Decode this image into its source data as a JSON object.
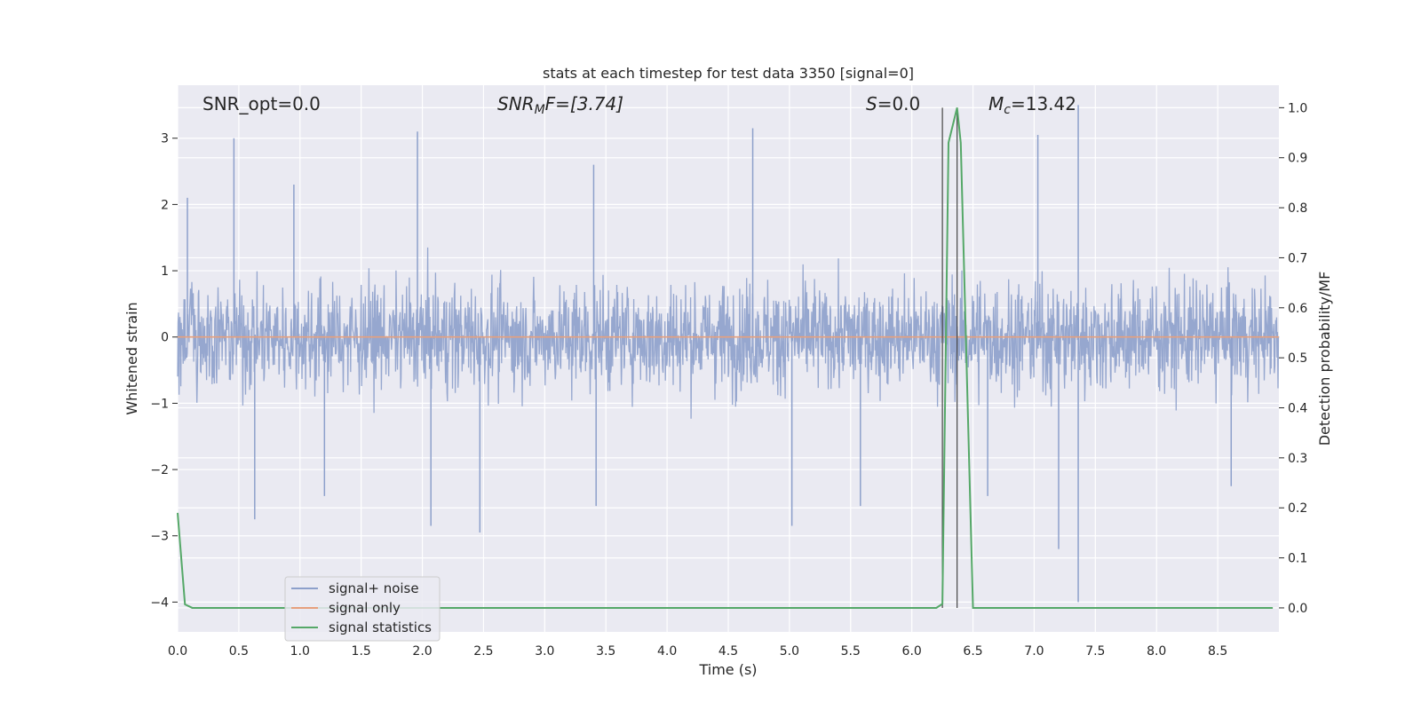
{
  "chart_data": {
    "type": "line",
    "title": "stats at each timestep for test data 3350 [signal=0]",
    "xlabel": "Time (s)",
    "ylabel": "Whitened strain",
    "y2label": "Detection probability/MF",
    "xlim": [
      0.0,
      9.0
    ],
    "ylim": [
      -4.45,
      3.8
    ],
    "y2lim": [
      -0.048,
      1.045
    ],
    "xticks": [
      "0.0",
      "0.5",
      "1.0",
      "1.5",
      "2.0",
      "2.5",
      "3.0",
      "3.5",
      "4.0",
      "4.5",
      "5.0",
      "5.5",
      "6.0",
      "6.5",
      "7.0",
      "7.5",
      "8.0",
      "8.5"
    ],
    "yticks": [
      "3",
      "2",
      "1",
      "0",
      "−1",
      "−2",
      "−3",
      "−4"
    ],
    "y2ticks": [
      "1.0",
      "0.9",
      "0.8",
      "0.7",
      "0.6",
      "0.5",
      "0.4",
      "0.3",
      "0.2",
      "0.1",
      "0.0"
    ],
    "grid": true,
    "legend_position": "lower-left",
    "annotations": {
      "snr_opt": "SNR_opt=0.0",
      "snr_mf_main": "SNR",
      "snr_mf_sub": "M",
      "snr_mf_rest": "F=[3.74]",
      "s_main": "S",
      "s_rest": "=0.0",
      "mc_main": "M",
      "mc_sub": "c",
      "mc_rest": "=13.42"
    },
    "vlines": [
      6.25,
      6.37
    ],
    "series": [
      {
        "name": "signal+ noise",
        "axis": "left",
        "color": "#8da0cb",
        "envelope_hint": {
          "typical_range": [
            -1.6,
            1.6
          ],
          "max": 3.5,
          "min": -4.0
        },
        "peaks": [
          {
            "x": 0.08,
            "y": 2.1
          },
          {
            "x": 0.46,
            "y": 3.0
          },
          {
            "x": 0.63,
            "y": -2.75
          },
          {
            "x": 0.95,
            "y": 2.3
          },
          {
            "x": 1.2,
            "y": -2.4
          },
          {
            "x": 1.96,
            "y": 3.1
          },
          {
            "x": 2.07,
            "y": -2.85
          },
          {
            "x": 2.47,
            "y": -2.95
          },
          {
            "x": 3.4,
            "y": 2.6
          },
          {
            "x": 3.42,
            "y": -2.55
          },
          {
            "x": 4.7,
            "y": 3.15
          },
          {
            "x": 5.02,
            "y": -2.85
          },
          {
            "x": 5.58,
            "y": -2.55
          },
          {
            "x": 6.62,
            "y": -2.4
          },
          {
            "x": 7.03,
            "y": 3.05
          },
          {
            "x": 7.2,
            "y": -3.2
          },
          {
            "x": 7.36,
            "y": 3.5
          },
          {
            "x": 7.36,
            "y": -4.0
          },
          {
            "x": 8.61,
            "y": -2.25
          }
        ]
      },
      {
        "name": "signal only",
        "axis": "left",
        "color": "#e6a07d",
        "x": [
          0.0,
          9.0
        ],
        "y": [
          0.0,
          0.0
        ]
      },
      {
        "name": "signal statistics",
        "axis": "right",
        "color": "#55a868",
        "x": [
          0.0,
          0.06,
          0.12,
          0.2,
          1.0,
          2.0,
          3.0,
          4.0,
          5.0,
          6.0,
          6.2,
          6.25,
          6.3,
          6.35,
          6.37,
          6.4,
          6.5,
          6.55,
          7.0,
          8.0,
          8.95
        ],
        "y": [
          0.19,
          0.007,
          0.0,
          0.0,
          0.0,
          0.0,
          0.0,
          0.0,
          0.0,
          0.0,
          0.0,
          0.008,
          0.93,
          0.98,
          1.0,
          0.93,
          0.0,
          0.0,
          0.0,
          0.0,
          0.0
        ]
      }
    ]
  }
}
